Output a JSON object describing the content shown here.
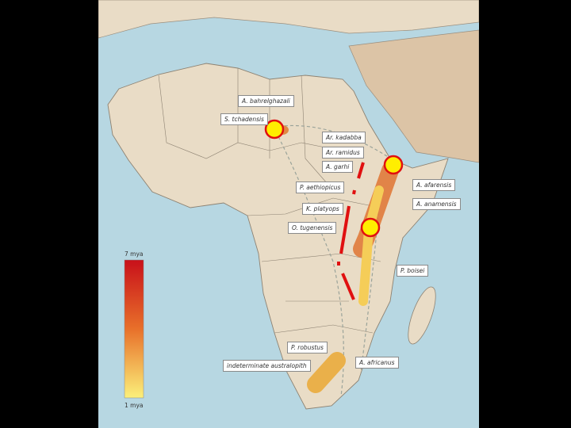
{
  "labels": {
    "a_bahrelghazali": "A. bahrelghazali",
    "s_tchadensis": "S. tchadensis",
    "ar_kadabba": "Ar. kadabba",
    "ar_ramidus": "Ar. ramidus",
    "a_garhi": "A. garhi",
    "p_aethiopicus": "P. aethiopicus",
    "k_platyops": "K. platyops",
    "o_tugenensis": "O. tugenensis",
    "a_afarensis": "A. afarensis",
    "a_anamensis": "A. anamensis",
    "p_boisei": "P. boisei",
    "p_robustus": "P. robustus",
    "indeterminate": "indeterminate australopith",
    "a_africanus": "A. africanus"
  },
  "legend": {
    "top": "7 mya",
    "bottom": "1 mya",
    "colors": [
      "#c8101a",
      "#e8702a",
      "#fbf07a"
    ]
  },
  "colors": {
    "ocean": "#b7d7e2",
    "land": "#e9dcc6",
    "marker_fill": "#ffee00",
    "marker_stroke": "#e01010",
    "rift_line": "#e01010"
  }
}
